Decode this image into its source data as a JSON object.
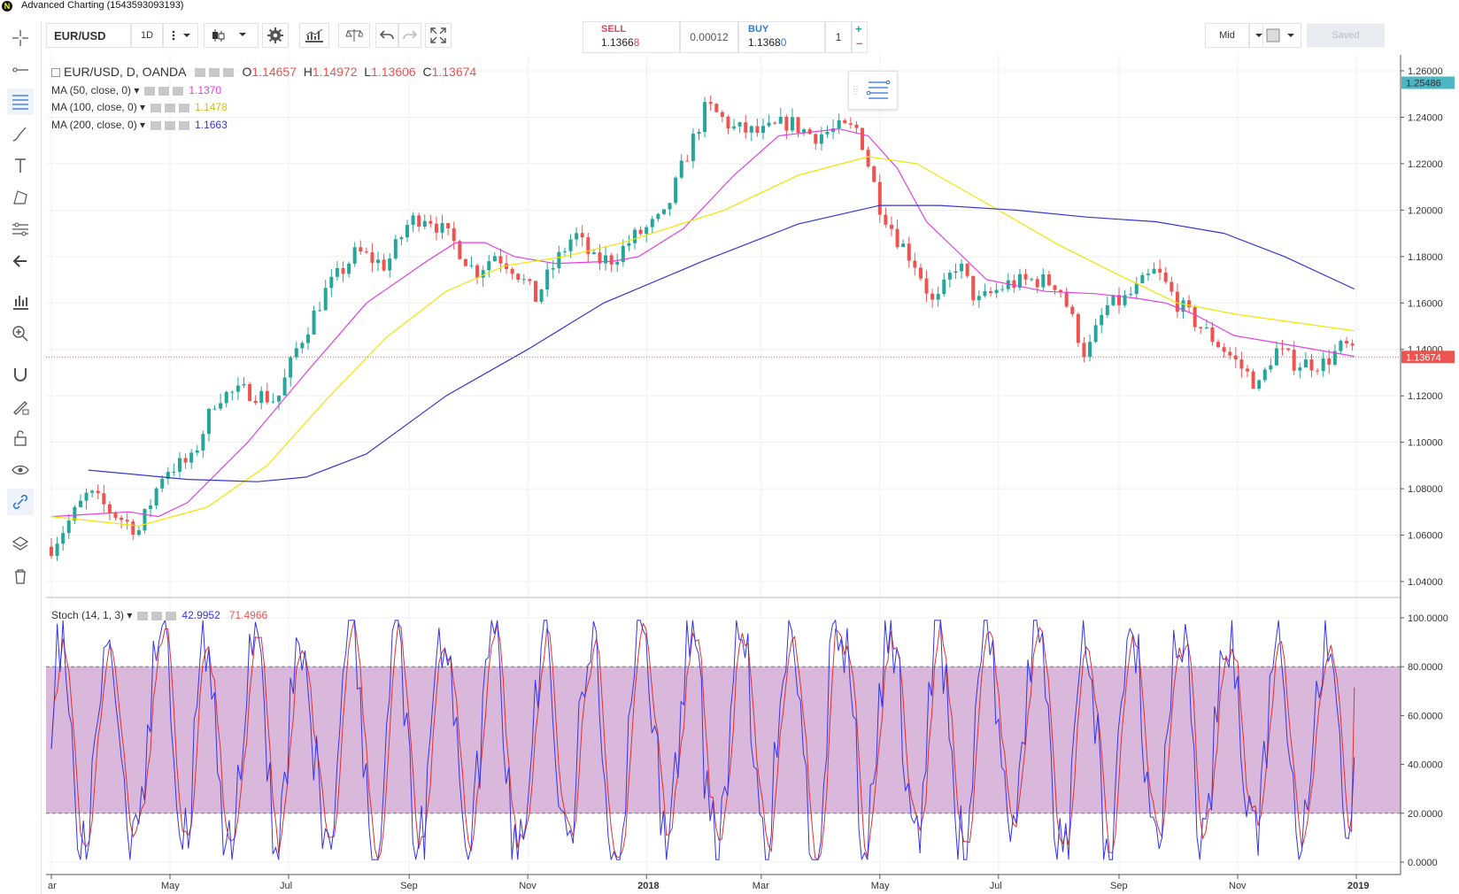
{
  "window": {
    "title": "Advanced Charting (1543593093193)"
  },
  "toolbar": {
    "symbol": "EUR/USD",
    "interval": "1D",
    "sell_label": "SELL",
    "sell_price_main": "1.1366",
    "sell_price_tail": "8",
    "spread": "0.00012",
    "buy_label": "BUY",
    "buy_price_main": "1.1368",
    "buy_price_tail": "0",
    "quantity": "1",
    "price_source": "Mid",
    "saved_label": "Saved"
  },
  "legend": {
    "title": "EUR/USD, D, OANDA",
    "o_label": "O",
    "o_value": "1.14657",
    "h_label": "H",
    "h_value": "1.14972",
    "l_label": "L",
    "l_value": "1.13606",
    "c_label": "C",
    "c_value": "1.13674",
    "ma50_label": "MA (50, close, 0)",
    "ma50_value": "1.1370",
    "ma50_color": "#e040e0",
    "ma100_label": "MA (100, close, 0)",
    "ma100_value": "1.1478",
    "ma100_color": "#f0e600",
    "ma200_label": "MA (200, close, 0)",
    "ma200_value": "1.1663",
    "ma200_color": "#3535d0",
    "stoch_label": "Stoch (14, 1, 3)",
    "stoch_k": "42.9952",
    "stoch_d": "71.4966"
  },
  "colors": {
    "up": "#26a69a",
    "down": "#ef5350",
    "price_tag": "#ef5350",
    "high_tag": "#4db6c4",
    "band": "#d9b8dc",
    "k_line": "#3535e6",
    "d_line": "#e03030"
  },
  "price_axis": {
    "ticks": [
      "1.26000",
      "1.24000",
      "1.22000",
      "1.20000",
      "1.18000",
      "1.16000",
      "1.14000",
      "1.12000",
      "1.10000",
      "1.08000",
      "1.06000",
      "1.04000"
    ],
    "high_tag": "1.25486",
    "last_tag": "1.13674"
  },
  "stoch_axis": {
    "ticks": [
      "100.0000",
      "80.0000",
      "60.0000",
      "40.0000",
      "20.0000",
      "0.0000"
    ]
  },
  "time_axis": {
    "labels": [
      "ar",
      "May",
      "Jul",
      "Sep",
      "Nov",
      "2018",
      "Mar",
      "May",
      "Jul",
      "Sep",
      "Nov",
      "2019"
    ]
  },
  "chart_data": {
    "type": "candlestick",
    "symbol": "EUR/USD",
    "interval": "D",
    "ylim": [
      1.04,
      1.265
    ],
    "price_path": [
      [
        "2017-03-01",
        1.055
      ],
      [
        "2017-03-20",
        1.078
      ],
      [
        "2017-04-01",
        1.07
      ],
      [
        "2017-04-15",
        1.062
      ],
      [
        "2017-04-28",
        1.088
      ],
      [
        "2017-05-12",
        1.092
      ],
      [
        "2017-05-25",
        1.12
      ],
      [
        "2017-06-10",
        1.122
      ],
      [
        "2017-06-25",
        1.118
      ],
      [
        "2017-07-05",
        1.14
      ],
      [
        "2017-07-20",
        1.165
      ],
      [
        "2017-08-05",
        1.182
      ],
      [
        "2017-08-20",
        1.176
      ],
      [
        "2017-09-01",
        1.195
      ],
      [
        "2017-09-10",
        1.198
      ],
      [
        "2017-09-25",
        1.185
      ],
      [
        "2017-10-05",
        1.173
      ],
      [
        "2017-10-15",
        1.181
      ],
      [
        "2017-10-25",
        1.175
      ],
      [
        "2017-11-05",
        1.162
      ],
      [
        "2017-11-15",
        1.177
      ],
      [
        "2017-11-25",
        1.19
      ],
      [
        "2017-12-05",
        1.178
      ],
      [
        "2017-12-15",
        1.179
      ],
      [
        "2017-12-25",
        1.188
      ],
      [
        "2018-01-10",
        1.197
      ],
      [
        "2018-01-20",
        1.22
      ],
      [
        "2018-02-01",
        1.245
      ],
      [
        "2018-02-15",
        1.235
      ],
      [
        "2018-03-01",
        1.233
      ],
      [
        "2018-03-15",
        1.238
      ],
      [
        "2018-03-28",
        1.232
      ],
      [
        "2018-04-10",
        1.235
      ],
      [
        "2018-04-20",
        1.235
      ],
      [
        "2018-05-01",
        1.202
      ],
      [
        "2018-05-10",
        1.188
      ],
      [
        "2018-05-20",
        1.176
      ],
      [
        "2018-05-29",
        1.158
      ],
      [
        "2018-06-10",
        1.178
      ],
      [
        "2018-06-20",
        1.16
      ],
      [
        "2018-07-05",
        1.168
      ],
      [
        "2018-07-20",
        1.17
      ],
      [
        "2018-08-01",
        1.168
      ],
      [
        "2018-08-15",
        1.137
      ],
      [
        "2018-08-25",
        1.158
      ],
      [
        "2018-09-05",
        1.162
      ],
      [
        "2018-09-20",
        1.174
      ],
      [
        "2018-10-01",
        1.16
      ],
      [
        "2018-10-10",
        1.152
      ],
      [
        "2018-10-25",
        1.14
      ],
      [
        "2018-11-12",
        1.124
      ],
      [
        "2018-11-20",
        1.14
      ],
      [
        "2018-12-01",
        1.134
      ],
      [
        "2018-12-15",
        1.134
      ],
      [
        "2018-12-26",
        1.142
      ],
      [
        "2018-12-31",
        1.1367
      ]
    ],
    "series": [
      {
        "name": "MA (50, close, 0)",
        "last": 1.137
      },
      {
        "name": "MA (100, close, 0)",
        "last": 1.1478
      },
      {
        "name": "MA (200, close, 0)",
        "last": 1.1663
      }
    ],
    "ma50": [
      [
        1.068,
        "2017-03-01"
      ],
      [
        1.07,
        "2017-04-10"
      ],
      [
        1.068,
        "2017-04-25"
      ],
      [
        1.074,
        "2017-05-10"
      ],
      [
        1.1,
        "2017-06-10"
      ],
      [
        1.13,
        "2017-07-10"
      ],
      [
        1.16,
        "2017-08-10"
      ],
      [
        1.178,
        "2017-09-10"
      ],
      [
        1.186,
        "2017-09-25"
      ],
      [
        1.186,
        "2017-10-10"
      ],
      [
        1.18,
        "2017-10-25"
      ],
      [
        1.177,
        "2017-11-15"
      ],
      [
        1.178,
        "2017-12-15"
      ],
      [
        1.18,
        "2017-12-28"
      ],
      [
        1.192,
        "2018-01-20"
      ],
      [
        1.215,
        "2018-02-15"
      ],
      [
        1.232,
        "2018-03-10"
      ],
      [
        1.235,
        "2018-04-10"
      ],
      [
        1.232,
        "2018-04-25"
      ],
      [
        1.218,
        "2018-05-10"
      ],
      [
        1.195,
        "2018-05-25"
      ],
      [
        1.17,
        "2018-06-25"
      ],
      [
        1.165,
        "2018-07-25"
      ],
      [
        1.164,
        "2018-08-20"
      ],
      [
        1.162,
        "2018-09-10"
      ],
      [
        1.16,
        "2018-09-25"
      ],
      [
        1.155,
        "2018-10-10"
      ],
      [
        1.146,
        "2018-10-30"
      ],
      [
        1.143,
        "2018-11-20"
      ],
      [
        1.137,
        "2018-12-31"
      ]
    ],
    "ma100": [
      [
        1.068,
        "2017-03-01"
      ],
      [
        1.064,
        "2017-04-15"
      ],
      [
        1.072,
        "2017-05-20"
      ],
      [
        1.09,
        "2017-06-20"
      ],
      [
        1.118,
        "2017-07-20"
      ],
      [
        1.145,
        "2017-08-20"
      ],
      [
        1.165,
        "2017-09-20"
      ],
      [
        1.176,
        "2017-10-20"
      ],
      [
        1.18,
        "2017-11-20"
      ],
      [
        1.186,
        "2017-12-20"
      ],
      [
        1.2,
        "2018-02-10"
      ],
      [
        1.215,
        "2018-03-20"
      ],
      [
        1.223,
        "2018-04-25"
      ],
      [
        1.22,
        "2018-05-20"
      ],
      [
        1.2,
        "2018-07-01"
      ],
      [
        1.185,
        "2018-08-01"
      ],
      [
        1.172,
        "2018-09-01"
      ],
      [
        1.16,
        "2018-10-01"
      ],
      [
        1.155,
        "2018-11-01"
      ],
      [
        1.148,
        "2018-12-31"
      ]
    ],
    "ma200": [
      [
        1.088,
        "2017-03-20"
      ],
      [
        1.084,
        "2017-05-10"
      ],
      [
        1.083,
        "2017-06-15"
      ],
      [
        1.085,
        "2017-07-10"
      ],
      [
        1.095,
        "2017-08-10"
      ],
      [
        1.12,
        "2017-09-20"
      ],
      [
        1.14,
        "2017-11-01"
      ],
      [
        1.16,
        "2017-12-10"
      ],
      [
        1.178,
        "2018-01-30"
      ],
      [
        1.194,
        "2018-03-20"
      ],
      [
        1.202,
        "2018-05-01"
      ],
      [
        1.202,
        "2018-06-01"
      ],
      [
        1.2,
        "2018-07-10"
      ],
      [
        1.197,
        "2018-08-15"
      ],
      [
        1.195,
        "2018-09-20"
      ],
      [
        1.19,
        "2018-10-25"
      ],
      [
        1.18,
        "2018-11-25"
      ],
      [
        1.166,
        "2018-12-31"
      ]
    ],
    "stoch_bands": [
      20,
      80
    ],
    "stoch_last": {
      "k": 42.9952,
      "d": 71.4966
    }
  }
}
